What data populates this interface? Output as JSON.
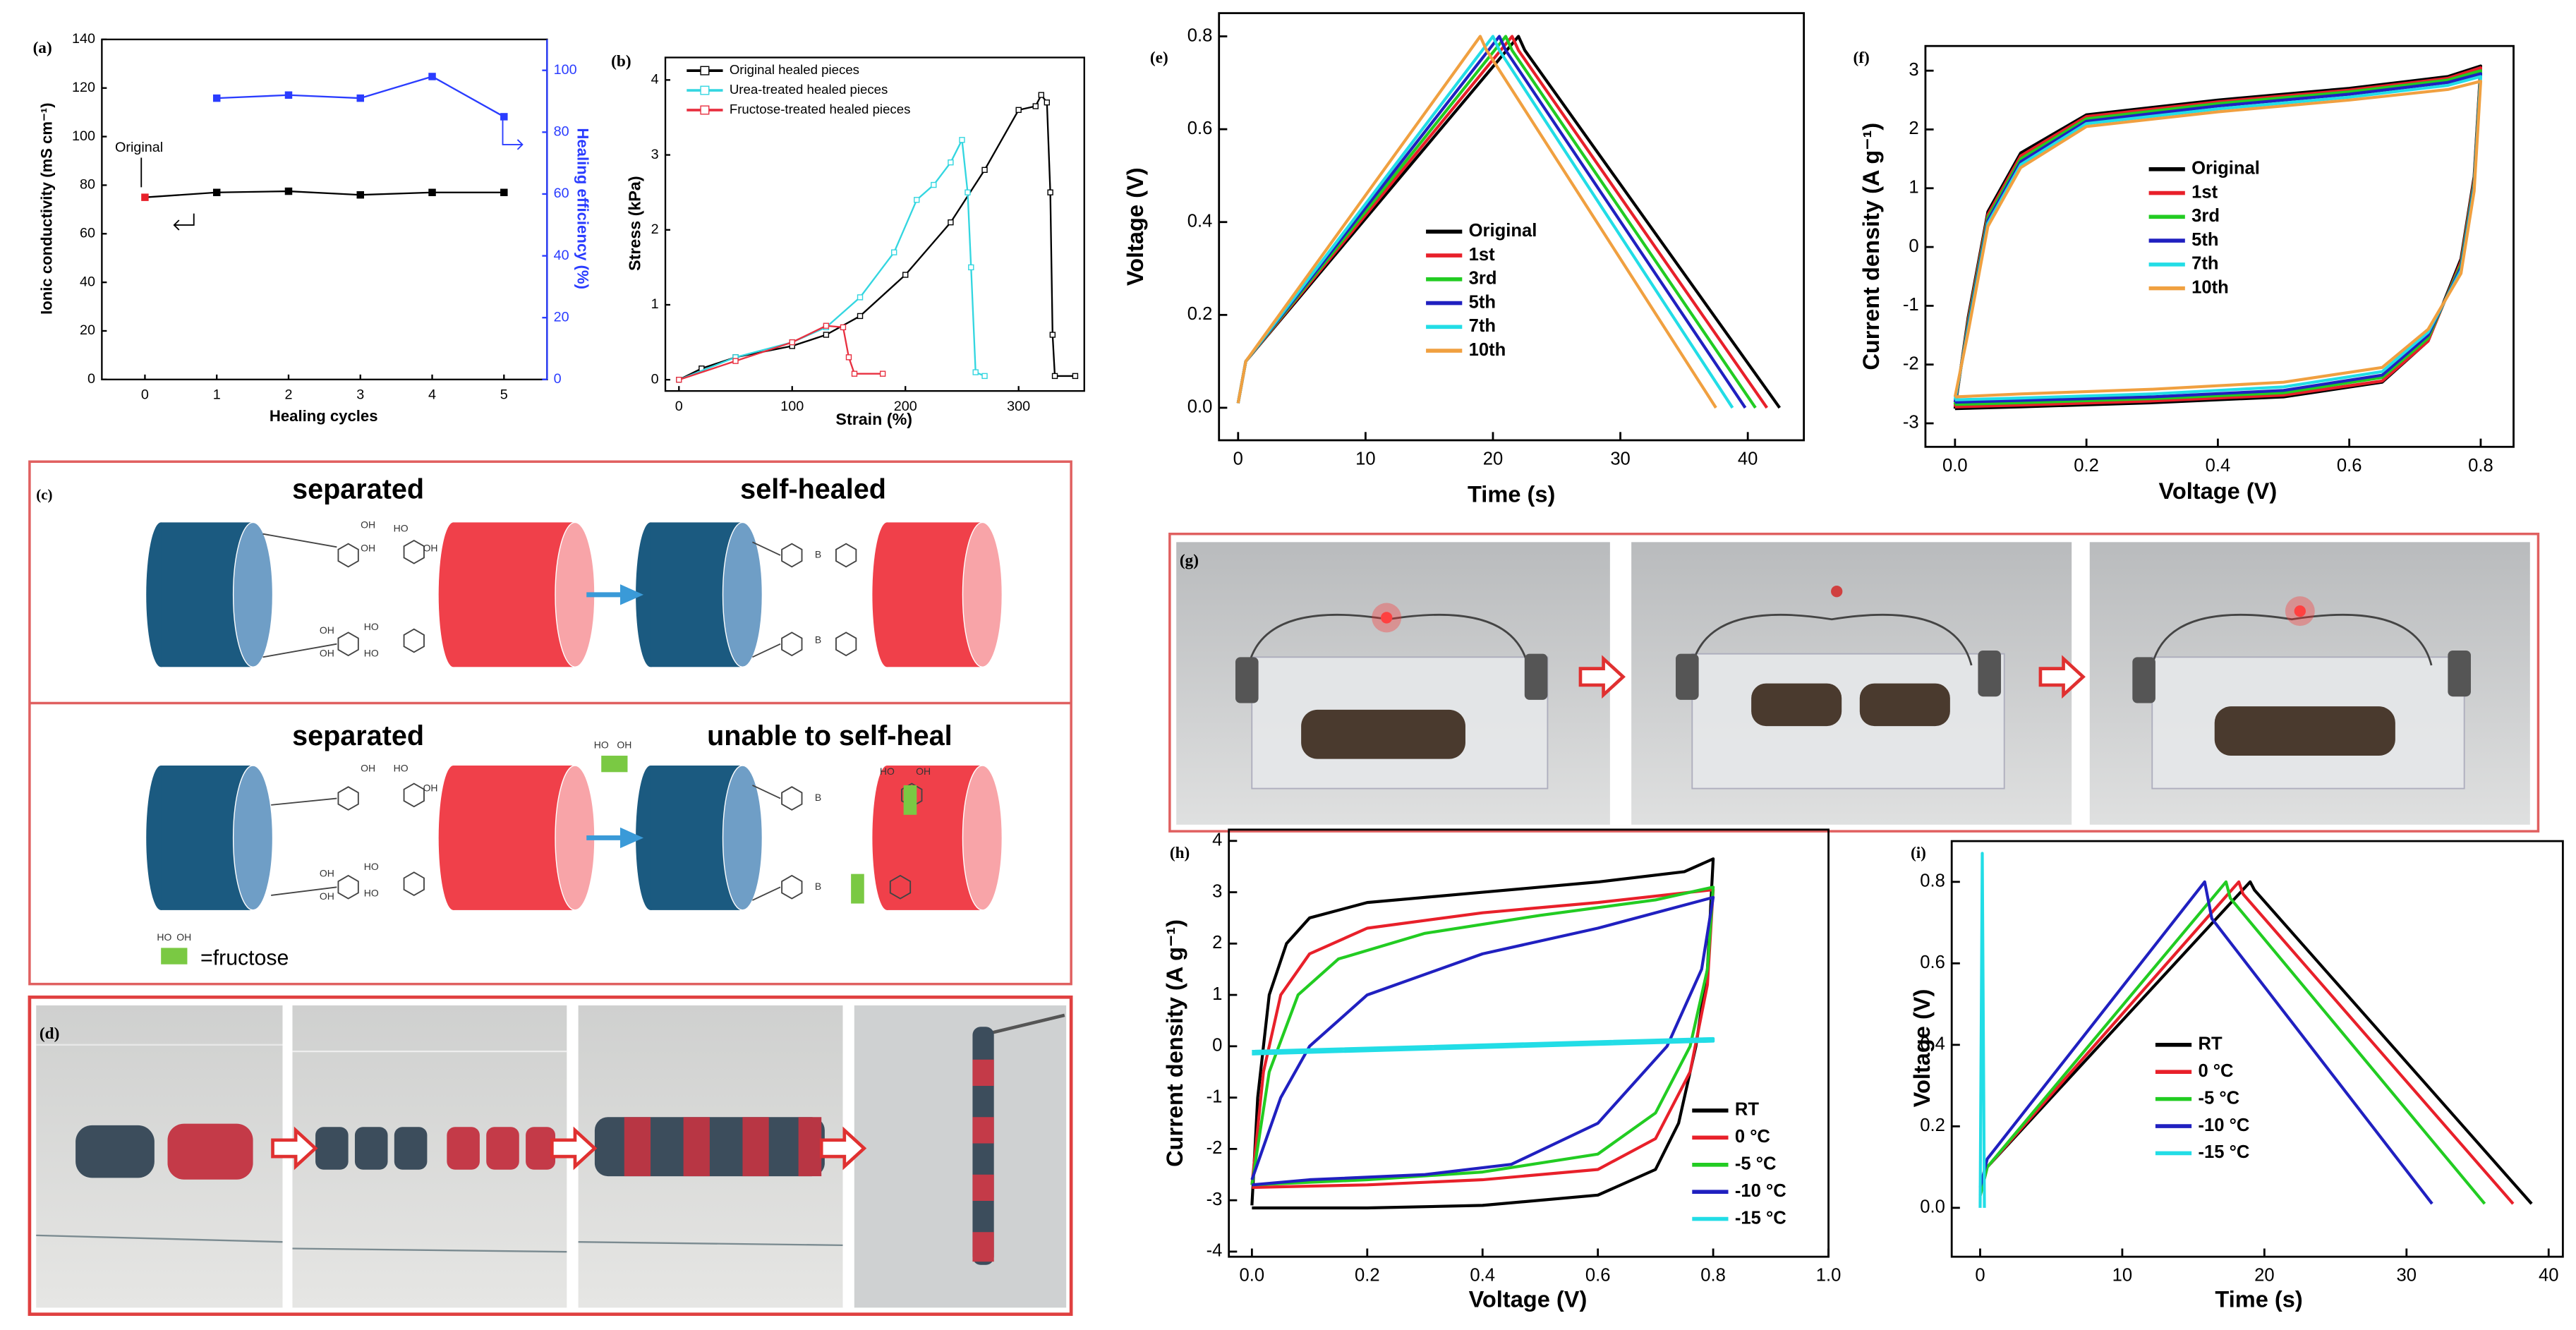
{
  "chart_data": [
    {
      "type": "line",
      "label": "(a)",
      "x_label": "Healing cycles",
      "y_label": "Ionic conductivity (mS cm⁻¹)",
      "y2_label": "Healing efficiency (%)",
      "y2_color": "#2a3cff",
      "x": [
        0,
        1,
        2,
        3,
        4,
        5
      ],
      "xlim": [
        -0.6,
        5.6
      ],
      "xticks": [
        0,
        1,
        2,
        3,
        4,
        5
      ],
      "ylim": [
        0,
        140
      ],
      "yticks": [
        0,
        20,
        40,
        60,
        80,
        100,
        120,
        140
      ],
      "y2lim": [
        0,
        110
      ],
      "y2ticks": [
        0,
        20,
        40,
        60,
        80,
        100
      ],
      "series": [
        {
          "color": "#000000",
          "marker": "square",
          "marker_colors": [
            "#e8202a",
            "#000000",
            "#000000",
            "#000000",
            "#000000",
            "#000000"
          ],
          "values": [
            75,
            77,
            77.5,
            76,
            77,
            77
          ]
        },
        {
          "color": "#2a3cff",
          "marker": "square",
          "axis": "y2",
          "x": [
            1,
            2,
            3,
            4,
            5
          ],
          "values": [
            91,
            92,
            91,
            98,
            85
          ]
        }
      ],
      "annotations": [
        "Original"
      ]
    },
    {
      "type": "line",
      "label": "(b)",
      "x_label": "Strain (%)",
      "y_label": "Stress (kPa)",
      "legend": "upper-left",
      "xlim": [
        -12,
        358
      ],
      "xticks": [
        0,
        100,
        200,
        300
      ],
      "ylim": [
        -0.15,
        4.3
      ],
      "yticks": [
        0,
        1,
        2,
        3,
        4
      ],
      "series": [
        {
          "name": "Original healed pieces",
          "color": "#000000",
          "marker": "open-square",
          "x": [
            0,
            20,
            50,
            100,
            130,
            160,
            200,
            240,
            270,
            300,
            315,
            320,
            325,
            328,
            330,
            332,
            350
          ],
          "values": [
            0,
            0.15,
            0.3,
            0.45,
            0.6,
            0.85,
            1.4,
            2.1,
            2.8,
            3.6,
            3.65,
            3.8,
            3.7,
            2.5,
            0.6,
            0.05,
            0.05
          ]
        },
        {
          "name": "Urea-treated healed pieces",
          "color": "#33d6e0",
          "marker": "open-square",
          "x": [
            0,
            50,
            100,
            130,
            160,
            190,
            210,
            225,
            240,
            250,
            255,
            258,
            262,
            270
          ],
          "values": [
            0,
            0.3,
            0.5,
            0.7,
            1.1,
            1.7,
            2.4,
            2.6,
            2.9,
            3.2,
            2.5,
            1.5,
            0.1,
            0.05
          ]
        },
        {
          "name": "Fructose-treated healed pieces",
          "color": "#e83040",
          "marker": "open-square",
          "x": [
            0,
            50,
            100,
            130,
            145,
            150,
            155,
            180
          ],
          "values": [
            0,
            0.25,
            0.5,
            0.72,
            0.7,
            0.3,
            0.08,
            0.08
          ]
        }
      ]
    },
    {
      "type": "line",
      "label": "(e)",
      "x_label": "Time (s)",
      "y_label": "Voltage (V)",
      "legend": "center",
      "xlim": [
        -1.5,
        44.4
      ],
      "xticks": [
        0,
        10,
        20,
        30,
        40
      ],
      "ylim": [
        -0.07,
        0.85
      ],
      "yticks": [
        {
          "value": 0,
          "label": "0.0"
        },
        0.2,
        0.4,
        0.6,
        0.8
      ],
      "series": [
        {
          "name": "Original",
          "color": "#000000",
          "x": [
            0,
            0.6,
            22,
            22.5,
            42.5
          ],
          "values": [
            0.01,
            0.1,
            0.8,
            0.77,
            0
          ]
        },
        {
          "name": "1st",
          "color": "#e8202a",
          "x": [
            0,
            0.6,
            21.5,
            22,
            41.5
          ],
          "values": [
            0.01,
            0.1,
            0.8,
            0.77,
            0
          ]
        },
        {
          "name": "3rd",
          "color": "#22cc22",
          "x": [
            0,
            0.6,
            21,
            21.5,
            40.6
          ],
          "values": [
            0.01,
            0.1,
            0.8,
            0.77,
            0
          ]
        },
        {
          "name": "5th",
          "color": "#2020c0",
          "x": [
            0,
            0.6,
            20.5,
            21,
            39.8
          ],
          "values": [
            0.01,
            0.1,
            0.8,
            0.77,
            0
          ]
        },
        {
          "name": "7th",
          "color": "#22dde6",
          "x": [
            0,
            0.6,
            20,
            20.5,
            38.8
          ],
          "values": [
            0.01,
            0.1,
            0.8,
            0.77,
            0
          ]
        },
        {
          "name": "10th",
          "color": "#f0a040",
          "x": [
            0,
            0.6,
            19,
            19.5,
            37.5
          ],
          "values": [
            0.01,
            0.1,
            0.8,
            0.77,
            0
          ]
        }
      ]
    },
    {
      "type": "line",
      "label": "(f)",
      "x_label": "Voltage (V)",
      "y_label": "Current density (A g⁻¹)",
      "legend": "center-left",
      "x": [
        0,
        0.02,
        0.05,
        0.1,
        0.2,
        0.4,
        0.6,
        0.75,
        0.8,
        0.79,
        0.77,
        0.72,
        0.65,
        0.5,
        0.3,
        0.1,
        0
      ],
      "xlim": [
        -0.045,
        0.85
      ],
      "xticks": [
        {
          "value": 0,
          "label": "0.0"
        },
        0.2,
        0.4,
        0.6,
        0.8
      ],
      "ylim": [
        -3.4,
        3.42
      ],
      "yticks": [
        -3,
        -2,
        -1,
        0,
        1,
        2,
        3
      ],
      "series": [
        {
          "name": "Original",
          "color": "#000000",
          "values": [
            -2.75,
            -1.2,
            0.6,
            1.6,
            2.25,
            2.5,
            2.7,
            2.9,
            3.08,
            1.2,
            -0.2,
            -1.6,
            -2.3,
            -2.55,
            -2.65,
            -2.72,
            -2.75
          ]
        },
        {
          "name": "1st",
          "color": "#e8202a",
          "values": [
            -2.72,
            -1.25,
            0.55,
            1.55,
            2.22,
            2.47,
            2.67,
            2.87,
            3.05,
            1.15,
            -0.25,
            -1.6,
            -2.28,
            -2.52,
            -2.62,
            -2.69,
            -2.72
          ]
        },
        {
          "name": "3rd",
          "color": "#22cc22",
          "values": [
            -2.68,
            -1.3,
            0.5,
            1.5,
            2.18,
            2.44,
            2.64,
            2.84,
            3.0,
            1.1,
            -0.3,
            -1.55,
            -2.22,
            -2.48,
            -2.58,
            -2.65,
            -2.68
          ]
        },
        {
          "name": "5th",
          "color": "#2020c0",
          "values": [
            -2.64,
            -1.35,
            0.45,
            1.45,
            2.14,
            2.4,
            2.6,
            2.8,
            2.95,
            1.05,
            -0.35,
            -1.5,
            -2.18,
            -2.44,
            -2.55,
            -2.61,
            -2.64
          ]
        },
        {
          "name": "7th",
          "color": "#22dde6",
          "values": [
            -2.6,
            -1.4,
            0.4,
            1.4,
            2.1,
            2.35,
            2.55,
            2.75,
            2.9,
            1.0,
            -0.4,
            -1.45,
            -2.12,
            -2.38,
            -2.5,
            -2.57,
            -2.6
          ]
        },
        {
          "name": "10th",
          "color": "#f0a040",
          "values": [
            -2.55,
            -1.45,
            0.35,
            1.35,
            2.05,
            2.3,
            2.5,
            2.68,
            2.82,
            0.95,
            -0.45,
            -1.4,
            -2.05,
            -2.3,
            -2.42,
            -2.5,
            -2.55
          ]
        }
      ]
    },
    {
      "type": "line",
      "label": "(h)",
      "x_label": "Voltage (V)",
      "y_label": "Current density (A g⁻¹)",
      "legend": "lower-right",
      "xlim": [
        -0.04,
        1.0
      ],
      "xticks": [
        {
          "value": 0,
          "label": "0.0"
        },
        0.2,
        0.4,
        0.6,
        0.8,
        {
          "value": 1,
          "label": "1.0"
        }
      ],
      "ylim": [
        -4.1,
        4.22
      ],
      "yticks": [
        -4,
        -3,
        -2,
        -1,
        0,
        1,
        2,
        3,
        4
      ],
      "series": [
        {
          "name": "RT",
          "color": "#000000",
          "x": [
            0,
            0.01,
            0.03,
            0.06,
            0.1,
            0.2,
            0.4,
            0.6,
            0.75,
            0.8,
            0.8,
            0.79,
            0.77,
            0.74,
            0.7,
            0.6,
            0.4,
            0.2,
            0
          ],
          "values": [
            -3.1,
            -1,
            1,
            2,
            2.5,
            2.8,
            3,
            3.2,
            3.4,
            3.65,
            3.65,
            1.5,
            0,
            -1.5,
            -2.4,
            -2.9,
            -3.1,
            -3.15,
            -3.15
          ]
        },
        {
          "name": "0 °C",
          "color": "#e8202a",
          "x": [
            0,
            0.02,
            0.05,
            0.1,
            0.2,
            0.4,
            0.6,
            0.8,
            0.79,
            0.76,
            0.7,
            0.6,
            0.4,
            0.2,
            0
          ],
          "values": [
            -2.7,
            -0.5,
            1,
            1.8,
            2.3,
            2.6,
            2.8,
            3.05,
            1.2,
            -0.5,
            -1.8,
            -2.4,
            -2.6,
            -2.7,
            -2.75
          ]
        },
        {
          "name": "-5 °C",
          "color": "#22cc22",
          "x": [
            0,
            0.03,
            0.08,
            0.15,
            0.3,
            0.5,
            0.7,
            0.8,
            0.79,
            0.76,
            0.7,
            0.6,
            0.4,
            0.2,
            0
          ],
          "values": [
            -2.7,
            -0.5,
            1,
            1.7,
            2.2,
            2.55,
            2.85,
            3.1,
            1.5,
            0,
            -1.3,
            -2.1,
            -2.45,
            -2.6,
            -2.7
          ]
        },
        {
          "name": "-10 °C",
          "color": "#2020c0",
          "x": [
            0,
            0.05,
            0.1,
            0.2,
            0.4,
            0.6,
            0.8,
            0.78,
            0.72,
            0.6,
            0.45,
            0.3,
            0.1,
            0
          ],
          "values": [
            -2.6,
            -1,
            0,
            1,
            1.8,
            2.3,
            2.9,
            1.5,
            0,
            -1.5,
            -2.3,
            -2.5,
            -2.6,
            -2.7
          ]
        },
        {
          "name": "-15 °C",
          "color": "#22dde6",
          "x": [
            0,
            0.8,
            0.8,
            0
          ],
          "values": [
            -0.1,
            0.15,
            0.1,
            -0.15
          ]
        }
      ]
    },
    {
      "type": "line",
      "label": "(i)",
      "x_label": "Time (s)",
      "y_label": "Voltage (V)",
      "legend": "center-right",
      "xlim": [
        -2,
        41
      ],
      "xticks": [
        0,
        10,
        20,
        30,
        40
      ],
      "ylim": [
        -0.12,
        0.9
      ],
      "yticks": [
        {
          "value": 0,
          "label": "0.0"
        },
        0.2,
        0.4,
        0.6,
        0.8
      ],
      "series": [
        {
          "name": "RT",
          "color": "#000000",
          "x": [
            0,
            0.5,
            19,
            19.3,
            38.8
          ],
          "values": [
            0.03,
            0.1,
            0.8,
            0.78,
            0.01
          ]
        },
        {
          "name": "0 °C",
          "color": "#e8202a",
          "x": [
            0,
            0.5,
            18.2,
            18.5,
            37.5
          ],
          "values": [
            0.03,
            0.1,
            0.8,
            0.77,
            0.01
          ]
        },
        {
          "name": "-5 °C",
          "color": "#22cc22",
          "x": [
            0,
            0.5,
            17.3,
            17.6,
            35.5
          ],
          "values": [
            0.03,
            0.1,
            0.8,
            0.76,
            0.01
          ]
        },
        {
          "name": "-10 °C",
          "color": "#2020c0",
          "x": [
            0,
            0.5,
            15.8,
            16.3,
            31.8
          ],
          "values": [
            0.05,
            0.12,
            0.8,
            0.71,
            0.01
          ]
        },
        {
          "name": "-15 °C",
          "color": "#22dde6",
          "x": [
            0,
            0.15,
            0.3
          ],
          "values": [
            0,
            0.87,
            0
          ]
        }
      ]
    }
  ],
  "panels": {
    "c": {
      "label": "(c)",
      "top_left": "separated",
      "top_right": "self-healed",
      "bottom_left": "separated",
      "bottom_right": "unable to self-heal",
      "fructose_key": "=fructose",
      "chem_labels": [
        "OH",
        "OH",
        "HO",
        "OH",
        "OH",
        "OH",
        "HO",
        "HO",
        "B",
        "B",
        "OH",
        "HO",
        "OH",
        "OH",
        "OH",
        "HO",
        "HO",
        "HO",
        "OH",
        "B",
        "B",
        "HO",
        "OH",
        "HO",
        "OH"
      ]
    },
    "d": {
      "label": "(d)"
    },
    "g": {
      "label": "(g)"
    }
  }
}
